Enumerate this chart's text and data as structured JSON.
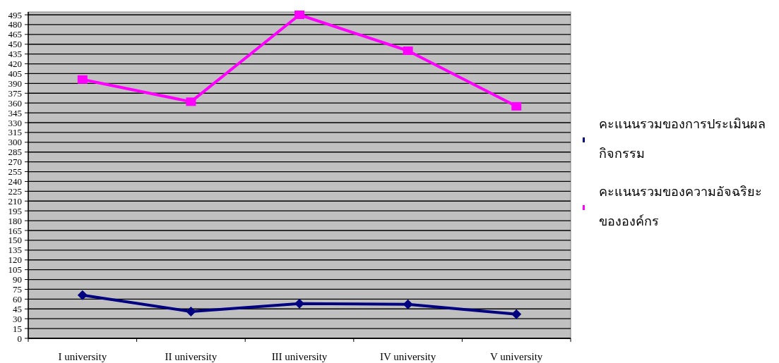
{
  "chart_data": {
    "type": "line",
    "categories": [
      "I university",
      "II university",
      "III university",
      "IV university",
      "V university"
    ],
    "series": [
      {
        "name": "คะแนนรวมของการประเมินผลกิจกรรม",
        "color": "#000080",
        "values": [
          66,
          41,
          53,
          52,
          37
        ],
        "marker": "diamond"
      },
      {
        "name": "คะแนนรวมของความอัจฉริยะขององค์กร",
        "color": "#ff00ff",
        "values": [
          396,
          362,
          495,
          440,
          355
        ],
        "marker": "square"
      }
    ],
    "ylim": [
      0,
      495
    ],
    "yticks": [
      0,
      15,
      30,
      45,
      60,
      75,
      90,
      105,
      120,
      135,
      150,
      165,
      180,
      195,
      210,
      225,
      240,
      255,
      270,
      285,
      300,
      315,
      330,
      345,
      360,
      375,
      390,
      405,
      420,
      435,
      450,
      465,
      480,
      495
    ],
    "grid": "y",
    "legend": "right",
    "line_style": "solid"
  }
}
